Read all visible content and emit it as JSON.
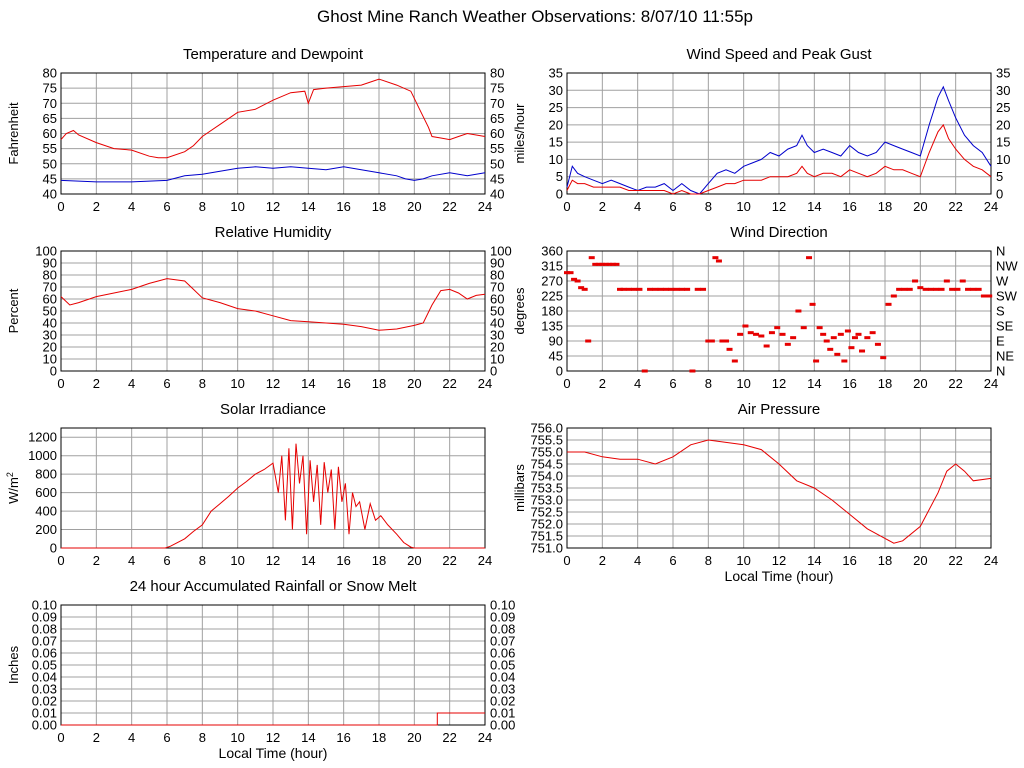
{
  "page": {
    "title": "Ghost Mine Ranch Weather Observations: 8/07/10 11:55p"
  },
  "colors": {
    "red_series": "#e60000",
    "blue_series": "#0000cc",
    "grid": "#a0a0a0",
    "axis": "#000000",
    "background": "#ffffff"
  },
  "chart_data": [
    {
      "id": "temp",
      "type": "line",
      "title": "Temperature and Dewpoint",
      "xlabel": "",
      "ylabel": "Fahrenheit",
      "xlim": [
        0,
        24
      ],
      "ylim": [
        40,
        80
      ],
      "x_ticks": [
        "0",
        "2",
        "4",
        "6",
        "8",
        "10",
        "12",
        "14",
        "16",
        "18",
        "20",
        "22",
        "24"
      ],
      "y_ticks": [
        "40",
        "45",
        "50",
        "55",
        "60",
        "65",
        "70",
        "75",
        "80"
      ],
      "right_ticks": [
        "40",
        "45",
        "50",
        "55",
        "60",
        "65",
        "70",
        "75",
        "80"
      ],
      "grid": true,
      "series": [
        {
          "name": "Temperature",
          "color": "red",
          "x": [
            0,
            0.3,
            0.7,
            1,
            2,
            3,
            4,
            5,
            5.5,
            6,
            7,
            7.5,
            8,
            9,
            10,
            11,
            12,
            13,
            13.8,
            14,
            14.3,
            15,
            16,
            17,
            17.5,
            18,
            19,
            19.8,
            20.3,
            20.8,
            21,
            21.5,
            22,
            22.5,
            23,
            23.5,
            24
          ],
          "y": [
            58,
            60,
            61,
            59.5,
            57,
            55,
            54.5,
            52.5,
            52,
            52,
            54,
            56,
            59,
            63,
            67,
            68,
            71,
            73.5,
            74,
            70,
            74.5,
            75,
            75.5,
            76,
            77,
            78,
            76,
            74,
            68,
            62,
            59,
            58.5,
            58,
            59,
            60,
            59.5,
            59
          ]
        },
        {
          "name": "Dewpoint",
          "color": "blue",
          "x": [
            0,
            2,
            4,
            6,
            7,
            8,
            9,
            10,
            11,
            12,
            13,
            14,
            15,
            16,
            17,
            18,
            19,
            19.5,
            20,
            20.5,
            21,
            22,
            23,
            24
          ],
          "y": [
            44.5,
            44,
            44,
            44.5,
            46,
            46.5,
            47.5,
            48.5,
            49,
            48.5,
            49,
            48.5,
            48,
            49,
            48,
            47,
            46,
            45,
            44.5,
            45,
            46,
            47,
            46,
            47
          ]
        }
      ]
    },
    {
      "id": "wind",
      "type": "line",
      "title": "Wind Speed and Peak Gust",
      "xlabel": "",
      "ylabel": "miles/hour",
      "xlim": [
        0,
        24
      ],
      "ylim": [
        0,
        35
      ],
      "x_ticks": [
        "0",
        "2",
        "4",
        "6",
        "8",
        "10",
        "12",
        "14",
        "16",
        "18",
        "20",
        "22",
        "24"
      ],
      "y_ticks": [
        "0",
        "5",
        "10",
        "15",
        "20",
        "25",
        "30",
        "35"
      ],
      "right_ticks": [
        "0",
        "5",
        "10",
        "15",
        "20",
        "25",
        "30",
        "35"
      ],
      "grid": true,
      "series": [
        {
          "name": "Peak Gust",
          "color": "blue",
          "x": [
            0,
            0.3,
            0.6,
            1,
            1.5,
            2,
            2.5,
            3,
            3.5,
            4,
            4.5,
            5,
            5.5,
            6,
            6.5,
            7,
            7.5,
            8,
            8.5,
            9,
            9.5,
            10,
            10.5,
            11,
            11.5,
            12,
            12.5,
            13,
            13.3,
            13.6,
            14,
            14.5,
            15,
            15.5,
            16,
            16.5,
            17,
            17.5,
            18,
            18.5,
            19,
            19.5,
            20,
            20.5,
            21,
            21.3,
            21.6,
            22,
            22.5,
            23,
            23.5,
            24
          ],
          "y": [
            2,
            8,
            6,
            5,
            4,
            3,
            4,
            3,
            2,
            1,
            2,
            2,
            3,
            1,
            3,
            1,
            0,
            3,
            6,
            7,
            6,
            8,
            9,
            10,
            12,
            11,
            13,
            14,
            17,
            14,
            12,
            13,
            12,
            11,
            14,
            12,
            11,
            12,
            15,
            14,
            13,
            12,
            11,
            20,
            28,
            31,
            27,
            22,
            17,
            14,
            12,
            8
          ]
        },
        {
          "name": "Wind Speed",
          "color": "red",
          "x": [
            0,
            0.3,
            0.6,
            1,
            1.5,
            2,
            2.5,
            3,
            3.5,
            4,
            4.5,
            5,
            5.5,
            6,
            6.5,
            7,
            7.5,
            8,
            8.5,
            9,
            9.5,
            10,
            10.5,
            11,
            11.5,
            12,
            12.5,
            13,
            13.3,
            13.6,
            14,
            14.5,
            15,
            15.5,
            16,
            16.5,
            17,
            17.5,
            18,
            18.5,
            19,
            19.5,
            20,
            20.5,
            21,
            21.3,
            21.6,
            22,
            22.5,
            23,
            23.5,
            24
          ],
          "y": [
            1,
            4,
            3,
            3,
            2,
            2,
            2,
            2,
            1,
            1,
            1,
            1,
            1,
            0,
            1,
            0,
            0,
            1,
            2,
            3,
            3,
            4,
            4,
            4,
            5,
            5,
            5,
            6,
            8,
            6,
            5,
            6,
            6,
            5,
            7,
            6,
            5,
            6,
            8,
            7,
            7,
            6,
            5,
            12,
            18,
            20,
            16,
            13,
            10,
            8,
            7,
            5
          ]
        }
      ]
    },
    {
      "id": "rh",
      "type": "line",
      "title": "Relative Humidity",
      "xlabel": "",
      "ylabel": "Percent",
      "xlim": [
        0,
        24
      ],
      "ylim": [
        0,
        100
      ],
      "x_ticks": [
        "0",
        "2",
        "4",
        "6",
        "8",
        "10",
        "12",
        "14",
        "16",
        "18",
        "20",
        "22",
        "24"
      ],
      "y_ticks": [
        "0",
        "10",
        "20",
        "30",
        "40",
        "50",
        "60",
        "70",
        "80",
        "90",
        "100"
      ],
      "right_ticks": [
        "0",
        "10",
        "20",
        "30",
        "40",
        "50",
        "60",
        "70",
        "80",
        "90",
        "100"
      ],
      "grid": true,
      "series": [
        {
          "name": "Relative Humidity",
          "color": "red",
          "x": [
            0,
            0.5,
            1,
            2,
            3,
            4,
            5,
            5.5,
            6,
            7,
            7.5,
            8,
            9,
            10,
            11,
            12,
            13,
            14,
            15,
            16,
            17,
            18,
            19,
            20,
            20.5,
            21,
            21.5,
            22,
            22.5,
            23,
            23.5,
            24
          ],
          "y": [
            62,
            55,
            57,
            62,
            65,
            68,
            73,
            75,
            77,
            75,
            68,
            61,
            57,
            52,
            50,
            46,
            42,
            41,
            40,
            39,
            37,
            34,
            35,
            38,
            40,
            55,
            67,
            68,
            65,
            60,
            63,
            64
          ]
        }
      ]
    },
    {
      "id": "wdir",
      "type": "scatter",
      "title": "Wind Direction",
      "xlabel": "",
      "ylabel": "degrees",
      "xlim": [
        0,
        24
      ],
      "ylim": [
        0,
        360
      ],
      "x_ticks": [
        "0",
        "2",
        "4",
        "6",
        "8",
        "10",
        "12",
        "14",
        "16",
        "18",
        "20",
        "22",
        "24"
      ],
      "y_ticks": [
        "0",
        "45",
        "90",
        "135",
        "180",
        "225",
        "270",
        "315",
        "360"
      ],
      "right_ticks": [
        "N",
        "NE",
        "E",
        "SE",
        "S",
        "SW",
        "W",
        "NW",
        "N"
      ],
      "grid": true,
      "series": [
        {
          "name": "Wind Direction",
          "color": "red",
          "x": [
            0,
            0.2,
            0.4,
            0.6,
            0.8,
            1.0,
            1.2,
            1.4,
            1.6,
            1.8,
            2.0,
            2.2,
            2.4,
            2.6,
            2.8,
            3.0,
            3.2,
            3.5,
            3.8,
            4.1,
            4.4,
            4.7,
            5.0,
            5.3,
            5.6,
            5.9,
            6.2,
            6.5,
            6.8,
            7.1,
            7.4,
            7.7,
            8.0,
            8.2,
            8.4,
            8.6,
            8.8,
            9.0,
            9.2,
            9.5,
            9.8,
            10.1,
            10.4,
            10.7,
            11.0,
            11.3,
            11.6,
            11.9,
            12.2,
            12.5,
            12.8,
            13.1,
            13.4,
            13.7,
            13.9,
            14.1,
            14.3,
            14.5,
            14.7,
            14.9,
            15.1,
            15.3,
            15.5,
            15.7,
            15.9,
            16.1,
            16.3,
            16.5,
            16.7,
            17.0,
            17.3,
            17.6,
            17.9,
            18.2,
            18.5,
            18.8,
            19.1,
            19.4,
            19.7,
            20.0,
            20.3,
            20.6,
            20.9,
            21.2,
            21.5,
            21.8,
            22.1,
            22.4,
            22.7,
            23.0,
            23.3,
            23.6,
            23.9
          ],
          "y": [
            295,
            295,
            275,
            270,
            250,
            245,
            90,
            340,
            320,
            320,
            320,
            320,
            320,
            320,
            320,
            245,
            245,
            245,
            245,
            245,
            0,
            245,
            245,
            245,
            245,
            245,
            245,
            245,
            245,
            0,
            245,
            245,
            90,
            90,
            340,
            330,
            90,
            90,
            65,
            30,
            110,
            135,
            115,
            110,
            105,
            75,
            115,
            130,
            110,
            80,
            100,
            180,
            130,
            340,
            200,
            30,
            130,
            110,
            90,
            65,
            100,
            50,
            110,
            30,
            120,
            70,
            100,
            110,
            60,
            100,
            115,
            80,
            40,
            200,
            225,
            245,
            245,
            245,
            270,
            250,
            245,
            245,
            245,
            245,
            270,
            245,
            245,
            270,
            245,
            245,
            245,
            225,
            225
          ]
        }
      ]
    },
    {
      "id": "solar",
      "type": "line",
      "title": "Solar Irradiance",
      "xlabel": "",
      "ylabel": "W/m",
      "ylabel_sup": "2",
      "xlim": [
        0,
        24
      ],
      "ylim": [
        0,
        1300
      ],
      "x_ticks": [
        "0",
        "2",
        "4",
        "6",
        "8",
        "10",
        "12",
        "14",
        "16",
        "18",
        "20",
        "22",
        "24"
      ],
      "y_ticks": [
        "0",
        "200",
        "400",
        "600",
        "800",
        "1000",
        "1200"
      ],
      "y_tick_values": [
        0,
        200,
        400,
        600,
        800,
        1000,
        1200
      ],
      "grid": true,
      "series": [
        {
          "name": "Solar Irradiance",
          "color": "red",
          "x": [
            0,
            5.9,
            6.2,
            6.5,
            7,
            7.5,
            8,
            8.5,
            9,
            9.5,
            10,
            10.5,
            11,
            11.5,
            12,
            12.3,
            12.5,
            12.7,
            12.9,
            13.1,
            13.3,
            13.5,
            13.7,
            13.9,
            14.1,
            14.3,
            14.5,
            14.7,
            14.9,
            15.1,
            15.3,
            15.5,
            15.7,
            15.9,
            16.1,
            16.3,
            16.5,
            16.7,
            16.9,
            17.2,
            17.5,
            17.8,
            18.1,
            18.5,
            19,
            19.4,
            19.8,
            20,
            24
          ],
          "y": [
            0,
            0,
            20,
            50,
            100,
            180,
            250,
            400,
            480,
            560,
            650,
            720,
            800,
            850,
            920,
            600,
            1000,
            300,
            1080,
            200,
            1130,
            700,
            1000,
            150,
            950,
            500,
            900,
            250,
            930,
            600,
            850,
            200,
            880,
            500,
            700,
            150,
            600,
            450,
            500,
            200,
            480,
            300,
            350,
            250,
            150,
            60,
            10,
            0,
            0
          ]
        }
      ]
    },
    {
      "id": "pressure",
      "type": "line",
      "title": "Air Pressure",
      "xlabel": "Local Time (hour)",
      "ylabel": "millibars",
      "xlim": [
        0,
        24
      ],
      "ylim": [
        751.0,
        756.0
      ],
      "x_ticks": [
        "0",
        "2",
        "4",
        "6",
        "8",
        "10",
        "12",
        "14",
        "16",
        "18",
        "20",
        "22",
        "24"
      ],
      "y_ticks": [
        "751.0",
        "751.5",
        "752.0",
        "752.5",
        "753.0",
        "753.5",
        "754.0",
        "754.5",
        "755.0",
        "755.5",
        "756.0"
      ],
      "grid": true,
      "series": [
        {
          "name": "Air Pressure",
          "color": "red",
          "x": [
            0,
            1,
            2,
            3,
            4,
            5,
            6,
            7,
            8,
            9,
            10,
            11,
            12,
            13,
            14,
            15,
            16,
            17,
            18,
            18.5,
            19,
            20,
            21,
            21.5,
            22,
            22.5,
            23,
            24
          ],
          "y": [
            755.0,
            755.0,
            754.8,
            754.7,
            754.7,
            754.5,
            754.8,
            755.3,
            755.5,
            755.4,
            755.3,
            755.1,
            754.5,
            753.8,
            753.5,
            753.0,
            752.4,
            751.8,
            751.4,
            751.2,
            751.3,
            751.9,
            753.3,
            754.2,
            754.5,
            754.2,
            753.8,
            753.9
          ]
        }
      ]
    },
    {
      "id": "rain",
      "type": "line",
      "title": "24 hour Accumulated Rainfall or Snow Melt",
      "xlabel": "Local Time (hour)",
      "ylabel": "Inches",
      "xlim": [
        0,
        24
      ],
      "ylim": [
        0,
        0.1
      ],
      "x_ticks": [
        "0",
        "2",
        "4",
        "6",
        "8",
        "10",
        "12",
        "14",
        "16",
        "18",
        "20",
        "22",
        "24"
      ],
      "y_ticks": [
        "0.00",
        "0.01",
        "0.02",
        "0.03",
        "0.04",
        "0.05",
        "0.06",
        "0.07",
        "0.08",
        "0.09",
        "0.10"
      ],
      "right_ticks": [
        "0.00",
        "0.01",
        "0.02",
        "0.03",
        "0.04",
        "0.05",
        "0.06",
        "0.07",
        "0.08",
        "0.09",
        "0.10"
      ],
      "grid": true,
      "series": [
        {
          "name": "Accumulated Rainfall",
          "color": "red",
          "x": [
            0,
            21.3,
            21.3,
            24
          ],
          "y": [
            0,
            0,
            0.01,
            0.01
          ]
        }
      ]
    }
  ]
}
